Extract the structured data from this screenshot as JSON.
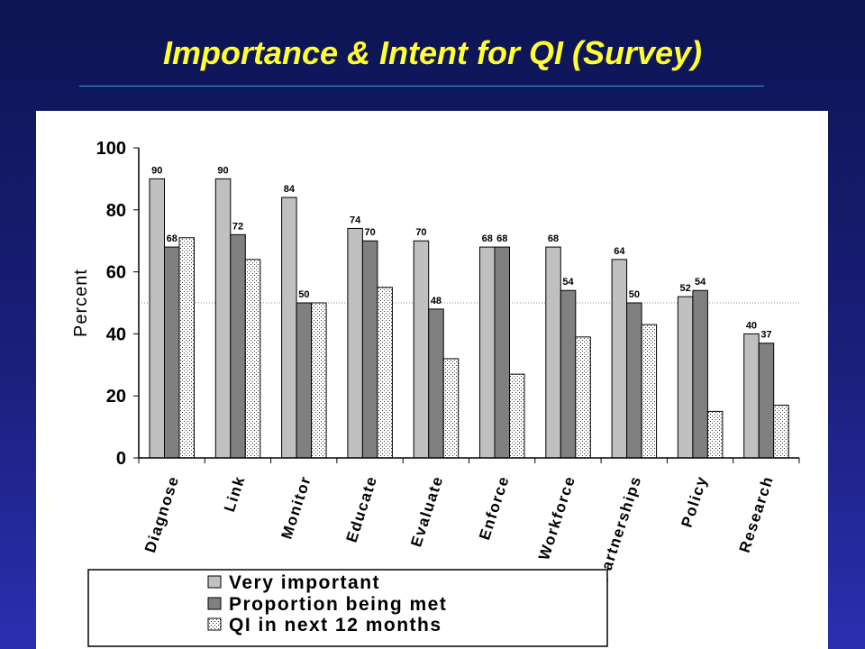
{
  "slide": {
    "title": "Importance & Intent for QI (Survey)"
  },
  "colors": {
    "background": "#1a1f7a",
    "title": "#ffff33",
    "rule": "#3d9bd6",
    "series": [
      "#c0c0c0",
      "#808080",
      "#ffffff"
    ]
  },
  "chart_data": {
    "type": "bar",
    "title": "",
    "xlabel": "",
    "ylabel": "Percent",
    "ylim": [
      0,
      100
    ],
    "yticks": [
      0,
      20,
      40,
      60,
      80,
      100
    ],
    "reference_line": 50,
    "categories": [
      "Diagnose",
      "Link",
      "Monitor",
      "Educate",
      "Evaluate",
      "Enforce",
      "Workforce",
      "Partnerships",
      "Policy",
      "Research"
    ],
    "series": [
      {
        "name": "Very important",
        "values": [
          90,
          90,
          84,
          74,
          70,
          68,
          68,
          64,
          52,
          40
        ],
        "labeled": true
      },
      {
        "name": "Proportion being met",
        "values": [
          68,
          72,
          50,
          70,
          48,
          68,
          54,
          50,
          54,
          37
        ],
        "labeled": true
      },
      {
        "name": "QI in next 12 months",
        "values": [
          71,
          64,
          50,
          55,
          32,
          27,
          39,
          43,
          15,
          17
        ],
        "labeled": false
      }
    ],
    "legend": {
      "placement": "bottom-left",
      "entries": [
        "Very important",
        "Proportion being met",
        "QI in next 12 months"
      ]
    },
    "grid": false
  }
}
